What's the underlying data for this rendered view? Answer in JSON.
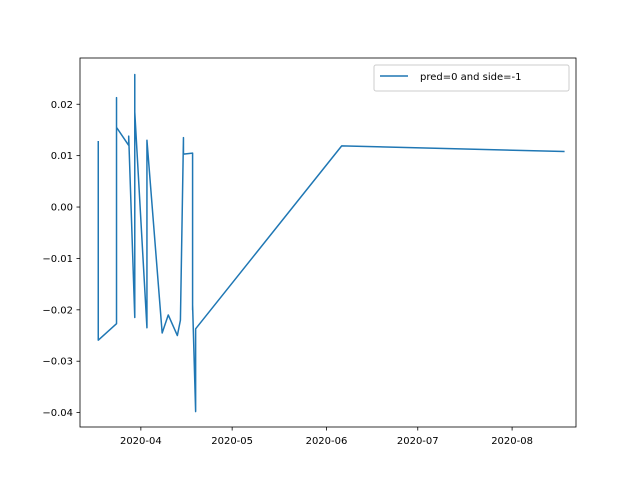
{
  "chart_data": {
    "type": "line",
    "title": "",
    "xlabel": "",
    "ylabel": "",
    "x_axis_type": "date",
    "xlim": [
      "2020-03-12",
      "2020-08-22"
    ],
    "ylim": [
      -0.0428,
      0.029
    ],
    "x_ticks": [
      "2020-04-01",
      "2020-05-01",
      "2020-06-01",
      "2020-07-01",
      "2020-08-01"
    ],
    "x_tick_labels": [
      "2020-04",
      "2020-05",
      "2020-06",
      "2020-07",
      "2020-08"
    ],
    "y_ticks": [
      0.02,
      0.01,
      0.0,
      -0.01,
      -0.02,
      -0.03,
      -0.04
    ],
    "y_tick_labels": [
      "0.02",
      "0.01",
      "0.00",
      "−0.01",
      "−0.02",
      "−0.03",
      "−0.04"
    ],
    "grid": false,
    "legend_position": "top-right",
    "series": [
      {
        "name": "pred=0 and side=-1",
        "color": "#1f77b4",
        "points": [
          [
            "2020-03-18",
            0.0127
          ],
          [
            "2020-03-18",
            -0.0259
          ],
          [
            "2020-03-24",
            -0.0227
          ],
          [
            "2020-03-24",
            0.0213
          ],
          [
            "2020-03-24",
            0.011
          ],
          [
            "2020-03-24",
            0.0155
          ],
          [
            "2020-03-28",
            0.012
          ],
          [
            "2020-03-28",
            0.0138
          ],
          [
            "2020-03-30",
            -0.0215
          ],
          [
            "2020-03-30",
            0.0258
          ],
          [
            "2020-03-30",
            0.0185
          ],
          [
            "2020-04-03",
            -0.0235
          ],
          [
            "2020-04-03",
            0.013
          ],
          [
            "2020-04-08",
            -0.0245
          ],
          [
            "2020-04-10",
            -0.021
          ],
          [
            "2020-04-13",
            -0.025
          ],
          [
            "2020-04-14",
            -0.022
          ],
          [
            "2020-04-15",
            0.0135
          ],
          [
            "2020-04-15",
            0.0103
          ],
          [
            "2020-04-18",
            0.0105
          ],
          [
            "2020-04-18",
            -0.02
          ],
          [
            "2020-04-18",
            -0.019
          ],
          [
            "2020-04-19",
            -0.0398
          ],
          [
            "2020-04-19",
            -0.0237
          ],
          [
            "2020-06-06",
            0.0119
          ],
          [
            "2020-08-18",
            0.0108
          ]
        ]
      }
    ]
  }
}
